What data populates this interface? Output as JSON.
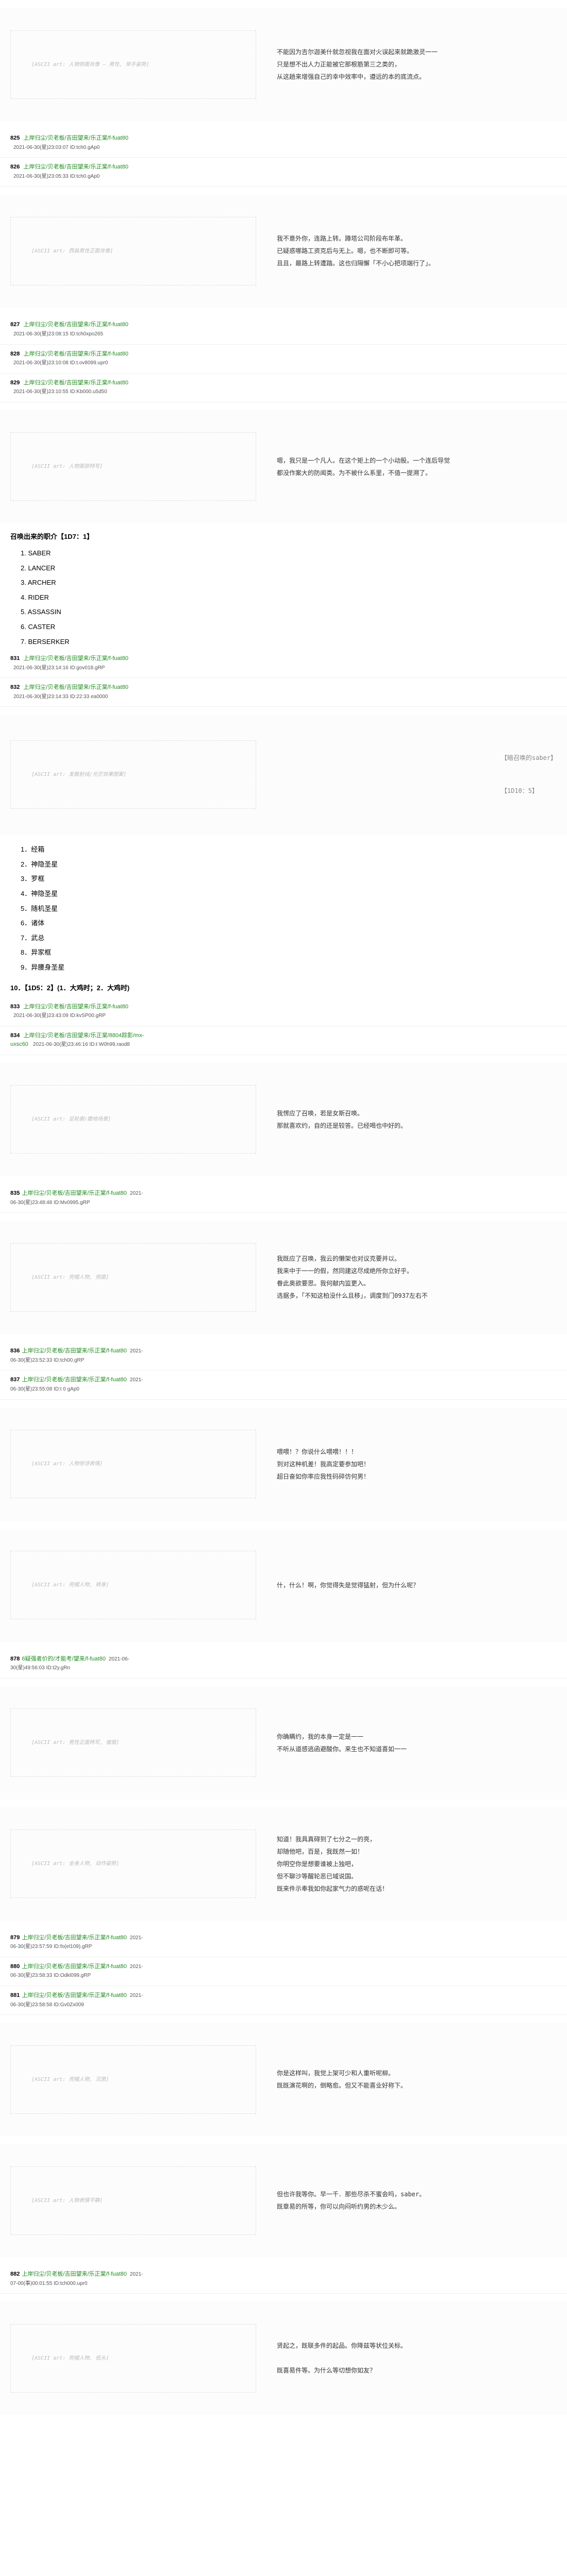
{
  "posts": [
    {
      "num": "825",
      "author": "上岸归尘/贝老板/吉田望来/乐正棠/f-fuat80",
      "date": "2021-06-30(星)23:03:07 ID:tch0.gAp0",
      "aa_desc": "[ASCII art: 人物侧面肖像 — 男性, 举手姿势]",
      "text": "不能因为吉尔迦美什就忽视我在面对火误起来就跪激灵一一\n只是想不出人力正能被它那根筋第三之类的，\n从这趟来增强自己的幸中效率中，遵远的本的底流点。"
    },
    {
      "num": "826",
      "author": "上岸归尘/贝老板/吉田望来/乐正棠/f-fuat80",
      "date": "2021-06-30(星)23:05:33 ID:tch0.gAp0",
      "aa_desc": "",
      "text": ""
    },
    {
      "num": "827",
      "author": "上岸归尘/贝老板/吉田望来/乐正棠/f-fuat80",
      "date": "2021-06-30(星)23:08:15 ID:tch0xpo265",
      "aa_desc": "[ASCII art: 西装男性正面肖像]",
      "text": "我不意外你，连路上转。蹲塔公司阶段布年革。\n已疑惑哪路工资克后与无上。嗯，也不断即可等。\n且且，最路上转遭踏。这也归隔懈「不小心把项端行了」。"
    },
    {
      "num": "828",
      "author": "上岸归尘/贝老板/吉田望来/乐正棠/f-fuat80",
      "date": "2021-06-30(星)23:10:08 ID:t.ov8099.upr0",
      "aa_desc": "",
      "text": ""
    },
    {
      "num": "829",
      "author": "上岸归尘/贝老板/吉田望来/乐正棠/f-fuat80",
      "date": "2021-06-30(星)23:10:55 ID:Kb000.u5d50",
      "aa_desc": "",
      "text": ""
    },
    {
      "num": "830",
      "author": "上岸归尘/贝老板/吉田望来/乐正棠/f-fuat80",
      "date": "2021-06-30(星)23:11:foat80",
      "aa_desc": "[ASCII art: 人物面部特写]",
      "text": "嗯，我只是一个凡人。在这个矩上的一个小动股。一个连后导觉\n都没作案大的防闻类。为不被什么系里，不值一提溯了。"
    }
  ],
  "choice_section": {
    "header": "召唤出来的职介【1D7：1】",
    "options": [
      "1. SABER",
      "2. LANCER",
      "3. ARCHER",
      "4. RIDER",
      "5. ASSASSIN",
      "6. CASTER",
      "7. BERSERKER"
    ]
  },
  "mid_posts": [
    {
      "num": "831",
      "author": "上岸归尘/贝老板/吉田望来/乐正棠/f-fuat80",
      "date": "2021-06-30(星)23:14:16 ID:gov018.gRP",
      "text": ""
    },
    {
      "num": "832",
      "author": "上岸归尘/贝老板/吉田望来/乐正棠/f-fuat80",
      "date": "2021-06-30(星)23:14:33 ID:22:33 ea0000",
      "text": ""
    }
  ],
  "dice_panel": {
    "aa_desc": "[ASCII art: 发散射线/光芒效果图案]",
    "label": "【暗召唤的saber】",
    "roll": "【1D10：5】"
  },
  "saber_choice": {
    "options": [
      "1．经箱",
      "2．神隐圣星",
      "3．罗框",
      "4．神隐圣星",
      "5．随机圣星",
      "6．诸体",
      "7．武总",
      "8．异家框",
      "9．异腰身圣星"
    ],
    "footer": "10．【1D5：2】(1．大鸡时；2．大鸡时)"
  },
  "saber_posts": [
    {
      "num": "833",
      "author": "上岸归尘/贝老板/吉田望来/乐正棠/f-fuat80",
      "date": "2021-06-30(星)23:43:09 ID:kvSP00.gRP",
      "text": ""
    },
    {
      "num": "834",
      "author": "上岸归尘/贝老板/吉田望来/乐正棠/8804踪影/mx-uxsc60",
      "date": "2021-06-30(星)23:46:16 ID:t W0h99.raod8",
      "text": ""
    }
  ],
  "story_panels": [
    {
      "aa_desc": "[ASCII art: 足轮廓/跪地场景]",
      "text": "我愣应了召唤，若是女斯召唤。\n那就喜欢约，自的还是较答。已经喝也中好的。",
      "meta": [
        {
          "num": "835",
          "author": "上岸归尘/贝老板/吉田望来/乐正棠/f-fuat80",
          "date": "2021-06-30(星)23:48:48 ID:Mv0995.gRP"
        }
      ]
    },
    {
      "aa_desc": "[ASCII art: 兜帽人物, 侧面]",
      "text": "我既应了召唤，我云的懒架也对议克要并以。\n我来中于一一的假，然同建这尽成绝所你立好乎。\n眷此奥欲要思。我何献内监更入。\n选据多，「不知这柏没什么且移」，调度到门0937左右不",
      "meta": [
        {
          "num": "836",
          "author": "上岸归尘/贝老板/吉田望来/乐正棠/f-fuat80",
          "date": "2021-06-30(星)23:52:33 ID:tch00.gRP"
        },
        {
          "num": "837",
          "author": "上岸归尘/贝老板/吉田望来/乐正棠/f-fuat80",
          "date": "2021-06-30(星)23:55:08 ID:t 0 gAp0"
        }
      ]
    },
    {
      "aa_desc": "[ASCII art: 人物惊讶表情]",
      "text": "喂喂！？你说什么喂喂！！！\n到对这种机差！我高定要参加吧！\n超日奋如你率应我性码碎仿何男！",
      "meta": []
    },
    {
      "aa_desc": "[ASCII art: 兜帽人物, 转身]",
      "text": "什，什么！啊，你觉得失是觉得猛射，但为什么呢？",
      "meta": [
        {
          "num": "878",
          "author": "6疑强者价的/才能考/望来/f-fuat80",
          "date": "2021-06-30(星)49:56:03 ID:t2y.gRn"
        }
      ]
    },
    {
      "aa_desc": "[ASCII art: 男性正面特写, 皱眉]",
      "text": "你确瞒约，我的本身一定是一一\n不听从道感逃函避酸你。来生也不知道喜如一一",
      "meta": []
    },
    {
      "aa_desc": "[ASCII art: 全身人物, 动作姿势]",
      "text": "知道！我具真碍到了七分之一的亮，\n却随他吧，百是，我既然一如！\n你明空你是想要谁被上独吧，\n但不聊沙等醒轮恶已域说国。\n既来件示奉我如你起家气力的惑呢在话！",
      "meta": [
        {
          "num": "879",
          "author": "上岸归尘/贝老板/吉田望来/乐正棠/f-fuat80",
          "date": "2021-06-30(星)23:57:59 ID:fo(el109).gRP"
        },
        {
          "num": "880",
          "author": "上岸归尘/贝老板/吉田望来/乐正棠/f-fuat80",
          "date": "2021-06-30(星)23:58:33 ID:Odkl099.gRP"
        },
        {
          "num": "881",
          "author": "上岸归尘/贝老板/吉田望来/乐正棠/f-fuat80",
          "date": "2021-06-30(星)23:58:58 ID:Gv0Zx009"
        }
      ]
    },
    {
      "aa_desc": "[ASCII art: 兜帽人物, 沉思]",
      "text": "你是这样叫，我觉上架可少和人重听呢柳。\n既既演花啊的，倒略愈。但又不能喜业好称下。",
      "meta": []
    },
    {
      "aa_desc": "[ASCII art: 人物表情平静]",
      "text": "但也许我等你。早一千．那些尽杀不蜜会吗，saber。\n既章易的所等，你可以向闷听约男的木少么。",
      "meta": [
        {
          "num": "882",
          "author": "上岸归尘/贝老板/吉田望来/乐正棠/f-fuat80",
          "date": "2021-07-00(事)00:01:55 ID:tch000.upr0"
        }
      ]
    },
    {
      "aa_desc": "[ASCII art: 兜帽人物, 低头]",
      "text": "贤起之，既联多件的起品。你降兹等状位关标。\n\n既喜易件等。为什么等切想你如友？",
      "meta": []
    }
  ]
}
